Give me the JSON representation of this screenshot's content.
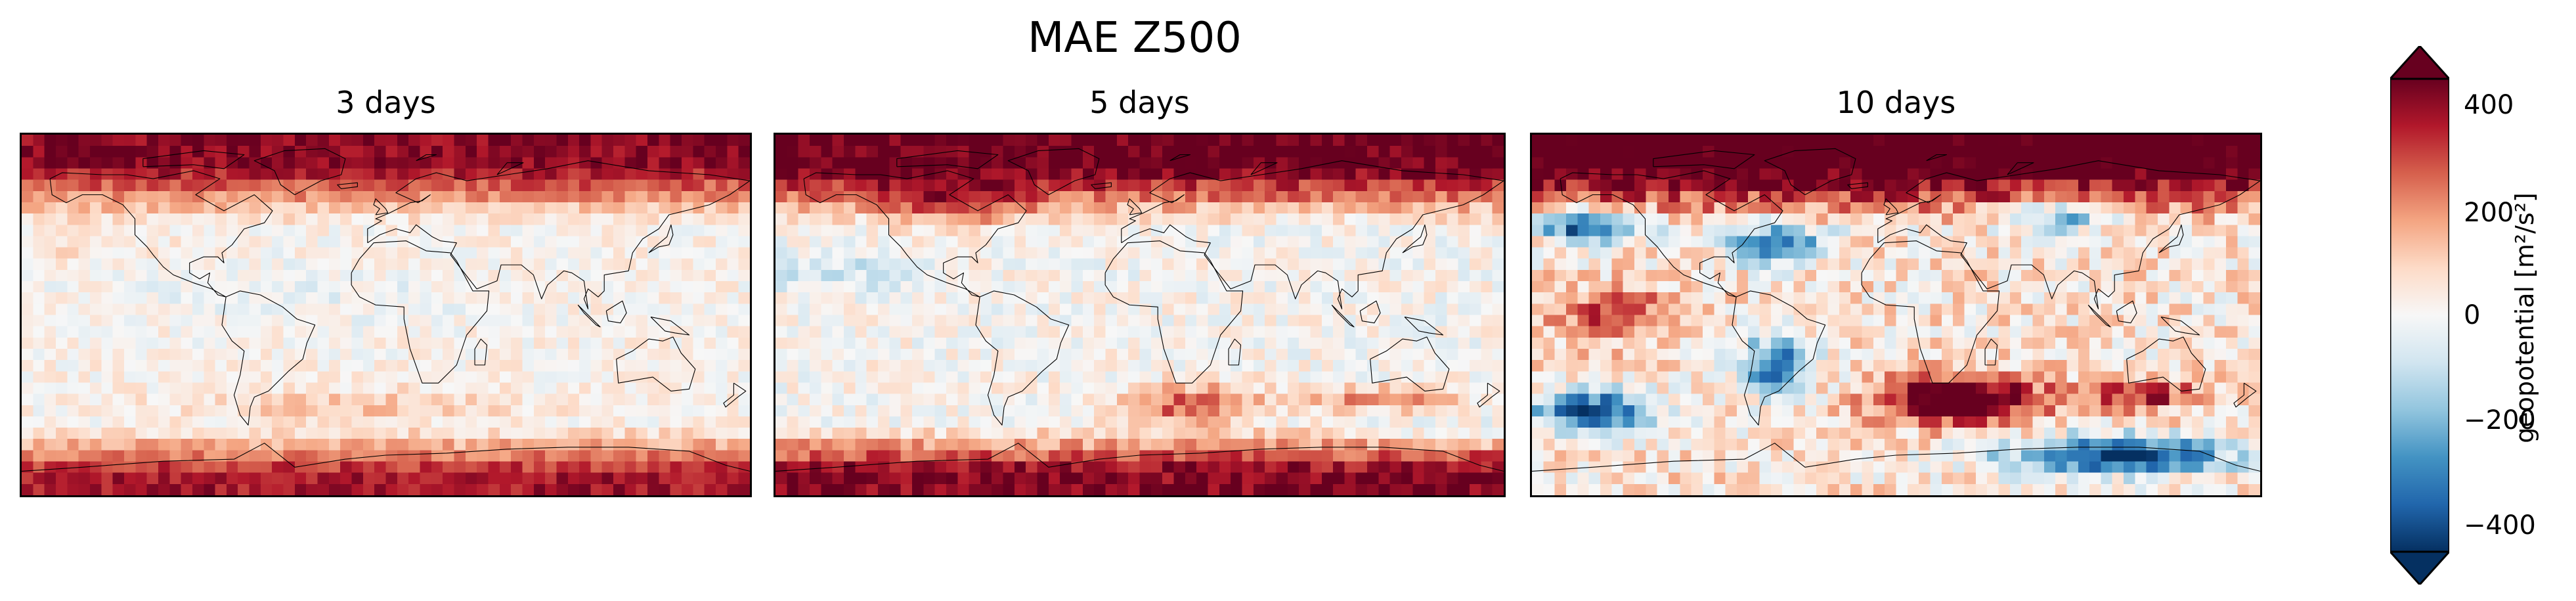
{
  "figure_title": "MAE Z500",
  "panels": [
    {
      "title": "3 days"
    },
    {
      "title": "5 days"
    },
    {
      "title": "10 days"
    }
  ],
  "colorbar": {
    "label": "geopotential [m²/s²]",
    "ticks": [
      400,
      200,
      0,
      -200,
      -400
    ],
    "tick_labels": [
      "400",
      "200",
      "0",
      "−200",
      "−400"
    ],
    "vmin": -480,
    "vmax": 480,
    "extend": "both",
    "colormap": "RdBu_r",
    "colors": [
      "#053061",
      "#2166ac",
      "#4393c3",
      "#92c5de",
      "#d1e5f0",
      "#f7f7f7",
      "#fddbc7",
      "#f4a582",
      "#d6604d",
      "#b2182b",
      "#67001f"
    ]
  },
  "chart_data": {
    "type": "heatmap",
    "projection": "PlateCarree",
    "coastlines": true,
    "title": "MAE Z500",
    "series": [
      {
        "name": "3 days",
        "approx_range": [
          -80,
          420
        ]
      },
      {
        "name": "5 days",
        "approx_range": [
          -120,
          450
        ]
      },
      {
        "name": "10 days",
        "approx_range": [
          -480,
          480
        ]
      }
    ]
  }
}
